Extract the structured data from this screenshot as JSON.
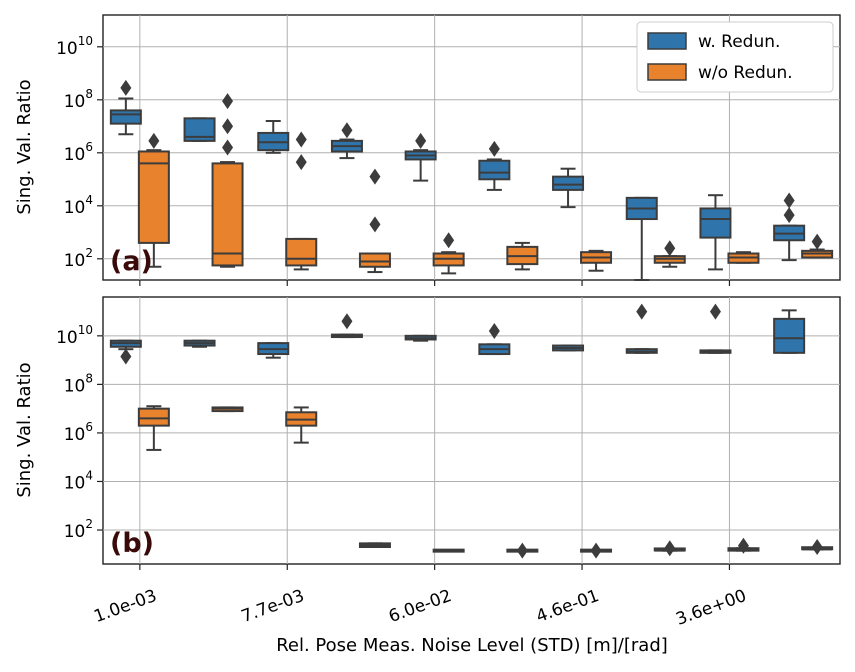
{
  "chart_data": [
    {
      "panel": "(a)",
      "type": "box",
      "ylabel": "Sing. Val. Ratio",
      "yscale": "log",
      "ylim_exp": [
        1.2,
        11.2
      ],
      "ytick_labels": [
        "10^2",
        "10^4",
        "10^6",
        "10^8",
        "10^10"
      ],
      "grid": true,
      "legend": {
        "placement": "top-right",
        "entries": [
          "w. Redun.",
          "w/o Redun."
        ]
      },
      "colors": {
        "w. Redun.": "#2f74ab",
        "w/o Redun.": "#e8822d"
      },
      "boxes_log10": [
        {
          "group": 1,
          "series": "w. Redun.",
          "q1": 7.1,
          "median": 7.45,
          "q3": 7.6,
          "whisker_low": 6.7,
          "whisker_high": 8.05,
          "fliers": [
            8.45
          ]
        },
        {
          "group": 1,
          "series": "w/o Redun.",
          "q1": 2.6,
          "median": 5.6,
          "q3": 6.05,
          "whisker_low": 1.7,
          "whisker_high": 6.1,
          "fliers": [
            6.45
          ]
        },
        {
          "group": 2,
          "series": "w. Redun.",
          "q1": 6.45,
          "median": 6.6,
          "q3": 7.3,
          "whisker_low": 6.45,
          "whisker_high": 7.3,
          "fliers": []
        },
        {
          "group": 2,
          "series": "w/o Redun.",
          "q1": 1.75,
          "median": 2.2,
          "q3": 5.6,
          "whisker_low": 1.7,
          "whisker_high": 5.65,
          "fliers": [
            6.2,
            7.0,
            7.95
          ]
        },
        {
          "group": 3,
          "series": "w. Redun.",
          "q1": 6.1,
          "median": 6.4,
          "q3": 6.75,
          "whisker_low": 6.0,
          "whisker_high": 7.2,
          "fliers": []
        },
        {
          "group": 3,
          "series": "w/o Redun.",
          "q1": 1.75,
          "median": 2.0,
          "q3": 2.75,
          "whisker_low": 1.6,
          "whisker_high": 2.75,
          "fliers": [
            5.65,
            6.5
          ]
        },
        {
          "group": 4,
          "series": "w. Redun.",
          "q1": 6.05,
          "median": 6.25,
          "q3": 6.45,
          "whisker_low": 5.8,
          "whisker_high": 6.5,
          "fliers": [
            6.85
          ]
        },
        {
          "group": 4,
          "series": "w/o Redun.",
          "q1": 1.7,
          "median": 1.9,
          "q3": 2.2,
          "whisker_low": 1.5,
          "whisker_high": 2.2,
          "fliers": [
            3.3,
            5.1
          ]
        },
        {
          "group": 5,
          "series": "w. Redun.",
          "q1": 5.75,
          "median": 5.9,
          "q3": 6.05,
          "whisker_low": 4.95,
          "whisker_high": 6.1,
          "fliers": [
            6.45
          ]
        },
        {
          "group": 5,
          "series": "w/o Redun.",
          "q1": 1.75,
          "median": 2.0,
          "q3": 2.2,
          "whisker_low": 1.45,
          "whisker_high": 2.25,
          "fliers": [
            2.7
          ]
        },
        {
          "group": 6,
          "series": "w. Redun.",
          "q1": 5.0,
          "median": 5.25,
          "q3": 5.7,
          "whisker_low": 4.6,
          "whisker_high": 5.75,
          "fliers": [
            6.15
          ]
        },
        {
          "group": 6,
          "series": "w/o Redun.",
          "q1": 1.8,
          "median": 2.1,
          "q3": 2.45,
          "whisker_low": 1.6,
          "whisker_high": 2.6,
          "fliers": []
        },
        {
          "group": 7,
          "series": "w. Redun.",
          "q1": 4.6,
          "median": 4.8,
          "q3": 5.1,
          "whisker_low": 3.95,
          "whisker_high": 5.4,
          "fliers": []
        },
        {
          "group": 7,
          "series": "w/o Redun.",
          "q1": 1.85,
          "median": 2.05,
          "q3": 2.25,
          "whisker_low": 1.55,
          "whisker_high": 2.3,
          "fliers": []
        },
        {
          "group": 8,
          "series": "w. Redun.",
          "q1": 3.5,
          "median": 3.9,
          "q3": 4.3,
          "whisker_low": 1.2,
          "whisker_high": 4.3,
          "fliers": []
        },
        {
          "group": 8,
          "series": "w/o Redun.",
          "q1": 1.85,
          "median": 2.0,
          "q3": 2.1,
          "whisker_low": 1.7,
          "whisker_high": 2.1,
          "fliers": [
            2.4
          ]
        },
        {
          "group": 9,
          "series": "w. Redun.",
          "q1": 2.8,
          "median": 3.5,
          "q3": 3.9,
          "whisker_low": 1.6,
          "whisker_high": 4.4,
          "fliers": []
        },
        {
          "group": 9,
          "series": "w/o Redun.",
          "q1": 1.85,
          "median": 2.05,
          "q3": 2.2,
          "whisker_low": 1.85,
          "whisker_high": 2.25,
          "fliers": []
        },
        {
          "group": 10,
          "series": "w. Redun.",
          "q1": 2.7,
          "median": 2.95,
          "q3": 3.25,
          "whisker_low": 1.95,
          "whisker_high": 3.25,
          "fliers": [
            3.65,
            4.2
          ]
        },
        {
          "group": 10,
          "series": "w/o Redun.",
          "q1": 2.05,
          "median": 2.2,
          "q3": 2.3,
          "whisker_low": 2.05,
          "whisker_high": 2.35,
          "fliers": [
            2.65
          ]
        }
      ]
    },
    {
      "panel": "(b)",
      "type": "box",
      "ylabel": "Sing. Val. Ratio",
      "yscale": "log",
      "ylim_exp": [
        0.6,
        11.6
      ],
      "ytick_labels": [
        "10^2",
        "10^4",
        "10^6",
        "10^8",
        "10^10"
      ],
      "grid": true,
      "colors": {
        "w. Redun.": "#2f74ab",
        "w/o Redun.": "#e8822d"
      },
      "boxes_log10": [
        {
          "group": 1,
          "series": "w. Redun.",
          "q1": 9.55,
          "median": 9.7,
          "q3": 9.8,
          "whisker_low": 9.45,
          "whisker_high": 9.8,
          "fliers": [
            9.15
          ]
        },
        {
          "group": 1,
          "series": "w/o Redun.",
          "q1": 6.3,
          "median": 6.6,
          "q3": 7.0,
          "whisker_low": 5.3,
          "whisker_high": 7.1,
          "fliers": []
        },
        {
          "group": 2,
          "series": "w. Redun.",
          "q1": 9.6,
          "median": 9.7,
          "q3": 9.8,
          "whisker_low": 9.55,
          "whisker_high": 9.8,
          "fliers": []
        },
        {
          "group": 2,
          "series": "w/o Redun.",
          "q1": 6.9,
          "median": 7.0,
          "q3": 7.05,
          "whisker_low": 6.9,
          "whisker_high": 7.05,
          "fliers": []
        },
        {
          "group": 3,
          "series": "w. Redun.",
          "q1": 9.25,
          "median": 9.45,
          "q3": 9.7,
          "whisker_low": 9.1,
          "whisker_high": 9.7,
          "fliers": []
        },
        {
          "group": 3,
          "series": "w/o Redun.",
          "q1": 6.3,
          "median": 6.55,
          "q3": 6.85,
          "whisker_low": 5.6,
          "whisker_high": 7.05,
          "fliers": []
        },
        {
          "group": 4,
          "series": "w. Redun.",
          "q1": 9.95,
          "median": 10.0,
          "q3": 10.05,
          "whisker_low": 9.95,
          "whisker_high": 10.05,
          "fliers": [
            10.6
          ]
        },
        {
          "group": 4,
          "series": "w/o Redun.",
          "q1": 1.3,
          "median": 1.38,
          "q3": 1.45,
          "whisker_low": 1.3,
          "whisker_high": 1.45,
          "fliers": []
        },
        {
          "group": 5,
          "series": "w. Redun.",
          "q1": 9.85,
          "median": 9.9,
          "q3": 10.0,
          "whisker_low": 9.8,
          "whisker_high": 10.0,
          "fliers": []
        },
        {
          "group": 5,
          "series": "w/o Redun.",
          "q1": 1.15,
          "median": 1.15,
          "q3": 1.15,
          "whisker_low": 1.15,
          "whisker_high": 1.15,
          "fliers": []
        },
        {
          "group": 6,
          "series": "w. Redun.",
          "q1": 9.25,
          "median": 9.45,
          "q3": 9.65,
          "whisker_low": 9.25,
          "whisker_high": 9.65,
          "fliers": [
            10.2
          ]
        },
        {
          "group": 6,
          "series": "w/o Redun.",
          "q1": 1.15,
          "median": 1.15,
          "q3": 1.15,
          "whisker_low": 1.15,
          "whisker_high": 1.15,
          "fliers": [
            1.15
          ]
        },
        {
          "group": 7,
          "series": "w. Redun.",
          "q1": 9.4,
          "median": 9.5,
          "q3": 9.6,
          "whisker_low": 9.4,
          "whisker_high": 9.6,
          "fliers": []
        },
        {
          "group": 7,
          "series": "w/o Redun.",
          "q1": 1.15,
          "median": 1.15,
          "q3": 1.15,
          "whisker_low": 1.15,
          "whisker_high": 1.15,
          "fliers": [
            1.15
          ]
        },
        {
          "group": 8,
          "series": "w. Redun.",
          "q1": 9.3,
          "median": 9.35,
          "q3": 9.45,
          "whisker_low": 9.3,
          "whisker_high": 9.45,
          "fliers": [
            11.0
          ]
        },
        {
          "group": 8,
          "series": "w/o Redun.",
          "q1": 1.15,
          "median": 1.15,
          "q3": 1.2,
          "whisker_low": 1.15,
          "whisker_high": 1.2,
          "fliers": [
            1.25
          ]
        },
        {
          "group": 9,
          "series": "w. Redun.",
          "q1": 9.3,
          "median": 9.35,
          "q3": 9.4,
          "whisker_low": 9.3,
          "whisker_high": 9.4,
          "fliers": [
            11.0
          ]
        },
        {
          "group": 9,
          "series": "w/o Redun.",
          "q1": 1.15,
          "median": 1.2,
          "q3": 1.25,
          "whisker_low": 1.15,
          "whisker_high": 1.25,
          "fliers": [
            1.35
          ]
        },
        {
          "group": 10,
          "series": "w. Redun.",
          "q1": 9.3,
          "median": 9.9,
          "q3": 10.7,
          "whisker_low": 9.3,
          "whisker_high": 11.05,
          "fliers": []
        },
        {
          "group": 10,
          "series": "w/o Redun.",
          "q1": 1.2,
          "median": 1.2,
          "q3": 1.25,
          "whisker_low": 1.2,
          "whisker_high": 1.25,
          "fliers": [
            1.3
          ]
        }
      ]
    }
  ],
  "x_axis": {
    "label": "Rel. Pose Meas.  Noise Level (STD) [m]/[rad]",
    "tick_labels": [
      "1.0e-03",
      "7.7e-03",
      "6.0e-02",
      "4.6e-01",
      "3.6e+00"
    ],
    "tick_groups": [
      1,
      3,
      5,
      7,
      9
    ]
  },
  "legend_entries": [
    "w. Redun.",
    "w/o Redun."
  ]
}
